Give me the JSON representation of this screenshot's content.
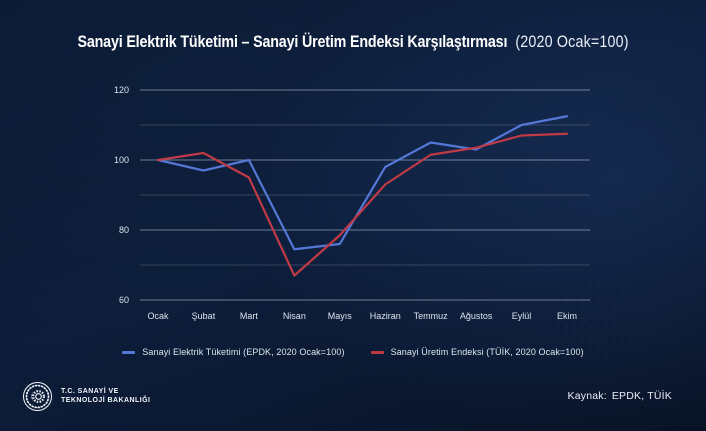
{
  "title": {
    "main": "Sanayi Elektrik Tüketimi – Sanayi Üretim Endeksi Karşılaştırması",
    "suffix": "(2020 Ocak=100)"
  },
  "chart_data": {
    "type": "line",
    "categories": [
      "Ocak",
      "Şubat",
      "Mart",
      "Nisan",
      "Mayıs",
      "Haziran",
      "Temmuz",
      "Ağustos",
      "Eylül",
      "Ekim"
    ],
    "series": [
      {
        "name": "Sanayi Elektrik Tüketimi (EPDK, 2020 Ocak=100)",
        "color": "#5577d6",
        "values": [
          100,
          97,
          100,
          74.5,
          76,
          98,
          105,
          103,
          110,
          112.5
        ]
      },
      {
        "name": "Sanayi Üretim Endeksi (TÜİK, 2020 Ocak=100)",
        "color": "#c03a46",
        "values": [
          100,
          102,
          95,
          67,
          78.5,
          93,
          101.5,
          103.5,
          107,
          107.5
        ]
      }
    ],
    "ylim": [
      60,
      120
    ],
    "gridline_step": 10,
    "yticks_labeled": [
      120,
      100,
      80,
      60
    ],
    "grid": "horizontal-only",
    "legend_position": "bottom",
    "title": "Sanayi Elektrik Tüketimi – Sanayi Üretim Endeksi Karşılaştırması (2020 Ocak=100)",
    "xlabel": "",
    "ylabel": ""
  },
  "footer": {
    "logo_line1": "T.C. SANAYİ VE",
    "logo_line2": "TEKNOLOJİ BAKANLIĞI",
    "source_label": "Kaynak:",
    "source_value": "EPDK, TÜİK"
  },
  "colors": {
    "background": "#0b1a33",
    "line_blue": "#5577d6",
    "line_red": "#c03a46",
    "grid_major": "rgba(205,220,240,0.50)",
    "grid_minor": "rgba(205,220,240,0.20)",
    "text": "#ffffff",
    "axis_text": "#dbe3ef"
  }
}
